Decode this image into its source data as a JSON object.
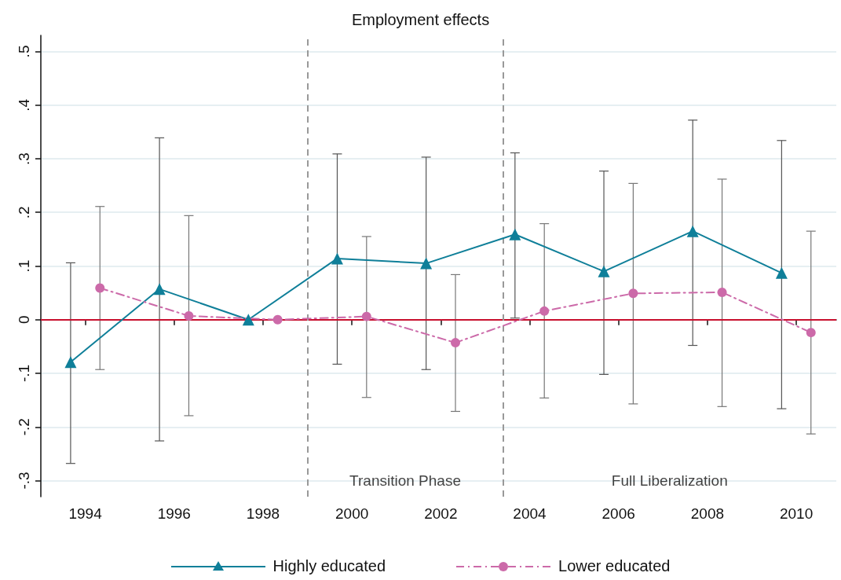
{
  "chart_data": {
    "type": "line",
    "title": "Employment effects",
    "xlim": [
      1993,
      2010.9
    ],
    "xticks": [
      1994,
      1996,
      1998,
      2000,
      2002,
      2004,
      2006,
      2008,
      2010
    ],
    "ylim": [
      -0.33,
      0.53
    ],
    "yticks": [
      {
        "value": -0.3,
        "label": "-.3"
      },
      {
        "value": -0.2,
        "label": "-.2"
      },
      {
        "value": -0.1,
        "label": "-.1"
      },
      {
        "value": 0,
        "label": "0"
      },
      {
        "value": 0.1,
        "label": ".1"
      },
      {
        "value": 0.2,
        "label": ".2"
      },
      {
        "value": 0.3,
        "label": ".3"
      },
      {
        "value": 0.4,
        "label": ".4"
      },
      {
        "value": 0.5,
        "label": ".5"
      }
    ],
    "grid": "y",
    "legend": "bottom",
    "series": [
      {
        "name": "Highly educated",
        "color": "#0f7f99",
        "marker": "triangle",
        "line_style": "solid",
        "x": [
          1993.67,
          1995.67,
          1997.67,
          1999.67,
          2001.67,
          2003.67,
          2005.67,
          2007.67,
          2009.67
        ],
        "values": [
          -0.079,
          0.057,
          0,
          0.114,
          0.105,
          0.159,
          0.09,
          0.165,
          0.087
        ],
        "errors": [
          [
            -0.268,
            0.106
          ],
          [
            -0.226,
            0.339
          ],
          null,
          [
            -0.083,
            0.309
          ],
          [
            -0.093,
            0.303
          ],
          [
            0.003,
            0.311
          ],
          [
            -0.102,
            0.277
          ],
          [
            -0.048,
            0.372
          ],
          [
            -0.166,
            0.334
          ]
        ]
      },
      {
        "name": "Lower educated",
        "color": "#cc6aa9",
        "marker": "circle",
        "line_style": "dashed",
        "x": [
          1994.33,
          1996.33,
          1998.33,
          2000.33,
          2002.33,
          2004.33,
          2006.33,
          2008.33,
          2010.33
        ],
        "values": [
          0.059,
          0.007,
          0,
          0.006,
          -0.043,
          0.016,
          0.049,
          0.051,
          -0.024
        ],
        "errors": [
          [
            -0.093,
            0.211
          ],
          [
            -0.179,
            0.194
          ],
          null,
          [
            -0.145,
            0.155
          ],
          [
            -0.171,
            0.084
          ],
          [
            -0.146,
            0.179
          ],
          [
            -0.157,
            0.254
          ],
          [
            -0.162,
            0.262
          ],
          [
            -0.213,
            0.165
          ]
        ]
      }
    ],
    "ref_lines": [
      {
        "axis": "y",
        "value": 0,
        "color": "#c8102e",
        "line_style": "solid"
      },
      {
        "axis": "x",
        "value": 1999,
        "color": "#999999",
        "line_style": "dashed"
      },
      {
        "axis": "x",
        "value": 2003.4,
        "color": "#999999",
        "line_style": "dashed"
      }
    ],
    "annotations": [
      "Transition Phase",
      "Full Liberalization"
    ]
  }
}
